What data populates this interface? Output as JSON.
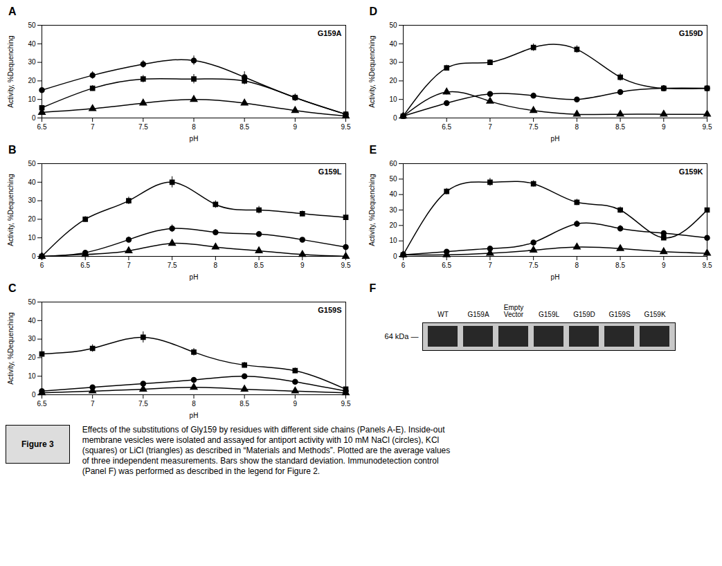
{
  "title": "Figure 3",
  "caption": "Effects of the substitutions of Gly159 by residues with different side chains (Panels A-E). Inside-out\nmembrane vesicles were isolated and assayed for antiport activity with 10 mM NaCl (circles), KCl\n(squares) or LiCl (triangles) as described in “Materials and Methods”. Plotted are the average values\nof three independent measurements. Bars show the standard deviation. Immunodetection control\n(Panel F) was performed as described in the legend for Figure 2.",
  "chart_data": [
    {
      "type": "line",
      "title": "A",
      "annotations": [
        "G159A"
      ],
      "xlabel": "pH",
      "ylabel": "Activity, %Dequenching",
      "color": "black",
      "xlim": [
        6.5,
        9.5
      ],
      "xticks": [
        6.5,
        7,
        7.5,
        8,
        8.5,
        9,
        9.5
      ],
      "ylim": [
        0,
        50
      ],
      "yticks": [
        0,
        10,
        20,
        30,
        40,
        50
      ],
      "series": [
        {
          "marker": "circle",
          "line_style": "solid",
          "x": [
            6.5,
            7,
            7.5,
            8,
            8.5,
            9,
            9.5
          ],
          "values": [
            15,
            23,
            29,
            31,
            22,
            11,
            2
          ],
          "errors": [
            1,
            2,
            2,
            2.5,
            3,
            2,
            0.5
          ]
        },
        {
          "marker": "square",
          "line_style": "solid",
          "x": [
            6.5,
            7,
            7.5,
            8,
            8.5,
            9,
            9.5
          ],
          "values": [
            5.5,
            16,
            21,
            21,
            20,
            11,
            2
          ],
          "errors": [
            0.5,
            1.5,
            2,
            2.5,
            2,
            1.5,
            0.5
          ]
        },
        {
          "marker": "triangle",
          "line_style": "solid",
          "x": [
            6.5,
            7,
            7.5,
            8,
            8.5,
            9,
            9.5
          ],
          "values": [
            3,
            5,
            8,
            10,
            8,
            4,
            1
          ],
          "errors": [
            0.5,
            0.5,
            1,
            1,
            1,
            0.5,
            0.3
          ]
        }
      ]
    },
    {
      "type": "line",
      "title": "D",
      "annotations": [
        "G159D"
      ],
      "xlabel": "pH",
      "ylabel": "Activity, %Dequenching",
      "color": "black",
      "xlim": [
        6,
        9.5
      ],
      "xticks": [
        6.5,
        7,
        7.5,
        8,
        8.5,
        9,
        9.5
      ],
      "ylim": [
        0,
        50
      ],
      "yticks": [
        0,
        10,
        20,
        30,
        40,
        50
      ],
      "series": [
        {
          "marker": "circle",
          "line_style": "solid",
          "x": [
            6,
            6.5,
            7,
            7.5,
            8,
            8.5,
            9,
            9.5
          ],
          "values": [
            1,
            8,
            13,
            12,
            10,
            14,
            16,
            16
          ],
          "errors": [
            0.2,
            0.8,
            1,
            1.5,
            1,
            1,
            1,
            1
          ]
        },
        {
          "marker": "square",
          "line_style": "solid",
          "x": [
            6,
            6.5,
            7,
            7.5,
            8,
            8.5,
            9,
            9.5
          ],
          "values": [
            1,
            27,
            30,
            38,
            37,
            22,
            16,
            16
          ],
          "errors": [
            0.3,
            1.5,
            1.5,
            2,
            2,
            2,
            1.5,
            1
          ]
        },
        {
          "marker": "triangle",
          "line_style": "solid",
          "x": [
            6,
            6.5,
            7,
            7.5,
            8,
            8.5,
            9,
            9.5
          ],
          "values": [
            1,
            14,
            9,
            4,
            2,
            2,
            2,
            2
          ],
          "errors": [
            0.2,
            1.5,
            1,
            0.5,
            0.3,
            0.3,
            0.3,
            0.2
          ]
        }
      ]
    },
    {
      "type": "line",
      "title": "B",
      "annotations": [
        "G159L"
      ],
      "xlabel": "pH",
      "ylabel": "Activity, %Dequenching",
      "color": "black",
      "xlim": [
        6,
        9.5
      ],
      "xticks": [
        6,
        6.5,
        7,
        7.5,
        8,
        8.5,
        9,
        9.5
      ],
      "ylim": [
        0,
        50
      ],
      "yticks": [
        0,
        10,
        20,
        30,
        40,
        50
      ],
      "series": [
        {
          "marker": "circle",
          "line_style": "solid",
          "x": [
            6,
            6.5,
            7,
            7.5,
            8,
            8.5,
            9,
            9.5
          ],
          "values": [
            0,
            2,
            9,
            15,
            13,
            12,
            9,
            5
          ],
          "errors": [
            0.2,
            0.3,
            1.5,
            2,
            1.5,
            1.5,
            1,
            0.5
          ]
        },
        {
          "marker": "square",
          "line_style": "solid",
          "x": [
            6,
            6.5,
            7,
            7.5,
            8,
            8.5,
            9,
            9.5
          ],
          "values": [
            0,
            20,
            30,
            40,
            28,
            25,
            23,
            21
          ],
          "errors": [
            0.3,
            1.5,
            2,
            3,
            2,
            2,
            1.5,
            1.5
          ]
        },
        {
          "marker": "triangle",
          "line_style": "solid",
          "x": [
            6,
            6.5,
            7,
            7.5,
            8,
            8.5,
            9,
            9.5
          ],
          "values": [
            0,
            1,
            3,
            7,
            5,
            3,
            1,
            0
          ],
          "errors": [
            0.1,
            0.2,
            0.5,
            1,
            0.8,
            0.5,
            0.2,
            0.2
          ]
        }
      ]
    },
    {
      "type": "line",
      "title": "E",
      "annotations": [
        "G159K"
      ],
      "xlabel": "pH",
      "ylabel": "Activity, %Dequenching",
      "color": "black",
      "xlim": [
        6,
        9.5
      ],
      "xticks": [
        6,
        6.5,
        7,
        7.5,
        8,
        8.5,
        9,
        9.5
      ],
      "ylim": [
        0,
        60
      ],
      "yticks": [
        0,
        10,
        20,
        30,
        40,
        50,
        60
      ],
      "series": [
        {
          "marker": "circle",
          "line_style": "solid",
          "x": [
            6,
            6.5,
            7,
            7.5,
            8,
            8.5,
            9,
            9.5
          ],
          "values": [
            1,
            3,
            5,
            9,
            21,
            18,
            15,
            12
          ],
          "errors": [
            0.2,
            0.5,
            0.5,
            1,
            2,
            2,
            1.5,
            1
          ]
        },
        {
          "marker": "square",
          "line_style": "solid",
          "x": [
            6,
            6.5,
            7,
            7.5,
            8,
            8.5,
            9,
            9.5
          ],
          "values": [
            1,
            42,
            48,
            47,
            35,
            30,
            12,
            30
          ],
          "errors": [
            0.3,
            2,
            2.5,
            2,
            2,
            2,
            1,
            2
          ]
        },
        {
          "marker": "triangle",
          "line_style": "solid",
          "x": [
            6,
            6.5,
            7,
            7.5,
            8,
            8.5,
            9,
            9.5
          ],
          "values": [
            1,
            1,
            2,
            4,
            6,
            5,
            3,
            2
          ],
          "errors": [
            0.2,
            0.2,
            0.3,
            0.5,
            0.8,
            0.7,
            0.4,
            0.3
          ]
        }
      ]
    },
    {
      "type": "line",
      "title": "C",
      "annotations": [
        "G159S"
      ],
      "xlabel": "pH",
      "ylabel": "Activity, %Dequenching",
      "color": "black",
      "xlim": [
        6.5,
        9.5
      ],
      "xticks": [
        6.5,
        7,
        7.5,
        8,
        8.5,
        9,
        9.5
      ],
      "ylim": [
        0,
        50
      ],
      "yticks": [
        0,
        10,
        20,
        30,
        40,
        50
      ],
      "series": [
        {
          "marker": "circle",
          "line_style": "solid",
          "x": [
            6.5,
            7,
            7.5,
            8,
            8.5,
            9,
            9.5
          ],
          "values": [
            2,
            4,
            6,
            8,
            10,
            7,
            2
          ],
          "errors": [
            0.3,
            0.5,
            0.5,
            1,
            1,
            0.8,
            0.3
          ]
        },
        {
          "marker": "square",
          "line_style": "solid",
          "x": [
            6.5,
            7,
            7.5,
            8,
            8.5,
            9,
            9.5
          ],
          "values": [
            22,
            25,
            31,
            23,
            16,
            13,
            3
          ],
          "errors": [
            1.5,
            2,
            3,
            2,
            1.5,
            1.5,
            0.5
          ]
        },
        {
          "marker": "triangle",
          "line_style": "solid",
          "x": [
            6.5,
            7,
            7.5,
            8,
            8.5,
            9,
            9.5
          ],
          "values": [
            1,
            2,
            3,
            4,
            3,
            2,
            1
          ],
          "errors": [
            0.2,
            0.3,
            0.4,
            0.5,
            0.4,
            0.3,
            0.2
          ]
        }
      ]
    },
    {
      "type": "western_blot",
      "title": "F",
      "categories": [
        "WT",
        "G159A",
        "Empty\nVector",
        "G159L",
        "G159D",
        "G159S",
        "G159K"
      ],
      "annotations": [
        "64 kDa —"
      ]
    }
  ]
}
